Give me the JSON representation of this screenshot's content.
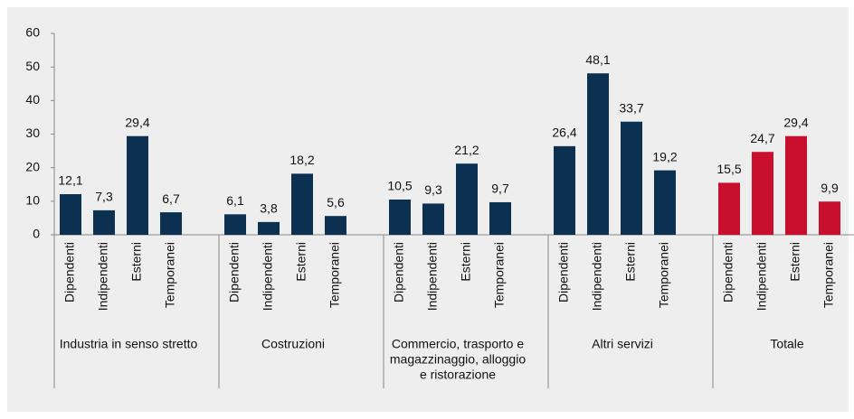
{
  "chart_data": {
    "type": "bar",
    "ylim": [
      0,
      60
    ],
    "yticks": [
      0,
      10,
      20,
      30,
      40,
      50,
      60
    ],
    "groups": [
      {
        "labels": [
          "Industria in senso stretto"
        ],
        "color": "#0c3150",
        "categories": [
          "Dipendenti",
          "Indipendenti",
          "Esterni",
          "Temporanei"
        ],
        "values": [
          12.1,
          7.3,
          29.4,
          6.7
        ],
        "value_labels": [
          "12,1",
          "7,3",
          "29,4",
          "6,7"
        ]
      },
      {
        "labels": [
          "Costruzioni"
        ],
        "color": "#0c3150",
        "categories": [
          "Dipendenti",
          "Indipendenti",
          "Esterni",
          "Temporanei"
        ],
        "values": [
          6.1,
          3.8,
          18.2,
          5.6
        ],
        "value_labels": [
          "6,1",
          "3,8",
          "18,2",
          "5,6"
        ]
      },
      {
        "labels": [
          "Commercio, trasporto e",
          "magazzinaggio, alloggio",
          "e ristorazione"
        ],
        "color": "#0c3150",
        "categories": [
          "Dipendenti",
          "Indipendenti",
          "Esterni",
          "Temporanei"
        ],
        "values": [
          10.5,
          9.3,
          21.2,
          9.7
        ],
        "value_labels": [
          "10,5",
          "9,3",
          "21,2",
          "9,7"
        ]
      },
      {
        "labels": [
          "Altri servizi"
        ],
        "color": "#0c3150",
        "categories": [
          "Dipendenti",
          "Indipendenti",
          "Esterni",
          "Temporanei"
        ],
        "values": [
          26.4,
          48.1,
          33.7,
          19.2
        ],
        "value_labels": [
          "26,4",
          "48,1",
          "33,7",
          "19,2"
        ]
      },
      {
        "labels": [
          "Totale"
        ],
        "color": "#c8102e",
        "categories": [
          "Dipendenti",
          "Indipendenti",
          "Esterni",
          "Temporanei"
        ],
        "values": [
          15.5,
          24.7,
          29.4,
          9.9
        ],
        "value_labels": [
          "15,5",
          "24,7",
          "29,4",
          "9,9"
        ]
      }
    ]
  }
}
